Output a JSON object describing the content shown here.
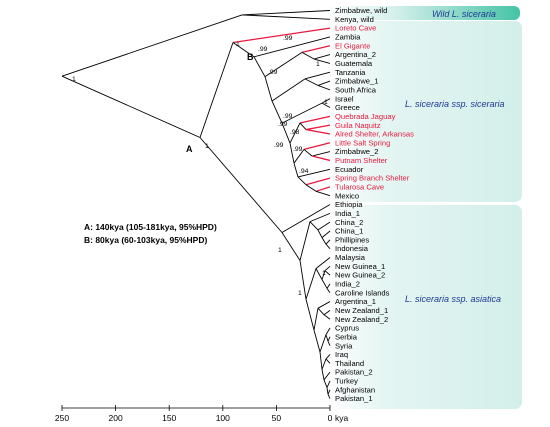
{
  "tree": {
    "leaves": [
      {
        "name": "Zimbabwe, wild",
        "highlight": false
      },
      {
        "name": "Kenya, wild",
        "highlight": false
      },
      {
        "name": "Loreto Cave",
        "highlight": true
      },
      {
        "name": "Zambia",
        "highlight": false
      },
      {
        "name": "El Gigante",
        "highlight": true
      },
      {
        "name": "Argentina_2",
        "highlight": false
      },
      {
        "name": "Guatemala",
        "highlight": false
      },
      {
        "name": "Tanzania",
        "highlight": false
      },
      {
        "name": "Zimbabwe_1",
        "highlight": false
      },
      {
        "name": "South Africa",
        "highlight": false
      },
      {
        "name": "Israel",
        "highlight": false
      },
      {
        "name": "Greece",
        "highlight": false
      },
      {
        "name": "Quebrada Jaguay",
        "highlight": true
      },
      {
        "name": "Guila Naquitz",
        "highlight": true
      },
      {
        "name": "Alred Shelter, Arkansas",
        "highlight": true
      },
      {
        "name": "Little Salt Spring",
        "highlight": true
      },
      {
        "name": "Zimbabwe_2",
        "highlight": false
      },
      {
        "name": "Putnam Shelter",
        "highlight": true
      },
      {
        "name": "Ecuador",
        "highlight": false
      },
      {
        "name": "Spring Branch Shelter",
        "highlight": true
      },
      {
        "name": "Tularosa Cave",
        "highlight": true
      },
      {
        "name": "Mexico",
        "highlight": false
      },
      {
        "name": "Ethiopia",
        "highlight": false
      },
      {
        "name": "India_1",
        "highlight": false
      },
      {
        "name": "China_2",
        "highlight": false
      },
      {
        "name": "China_1",
        "highlight": false
      },
      {
        "name": "Phillipines",
        "highlight": false
      },
      {
        "name": "Indonesia",
        "highlight": false
      },
      {
        "name": "Malaysia",
        "highlight": false
      },
      {
        "name": "New Guinea_1",
        "highlight": false
      },
      {
        "name": "New Guinea_2",
        "highlight": false
      },
      {
        "name": "India_2",
        "highlight": false
      },
      {
        "name": "Caroline Islands",
        "highlight": false
      },
      {
        "name": "Argentina_1",
        "highlight": false
      },
      {
        "name": "New Zealand_1",
        "highlight": false
      },
      {
        "name": "New Zealand_2",
        "highlight": false
      },
      {
        "name": "Cyprus",
        "highlight": false
      },
      {
        "name": "Serbia",
        "highlight": false
      },
      {
        "name": "Syria",
        "highlight": false
      },
      {
        "name": "Iraq",
        "highlight": false
      },
      {
        "name": "Thailand",
        "highlight": false
      },
      {
        "name": "Pakistan_2",
        "highlight": false
      },
      {
        "name": "Turkey",
        "highlight": false
      },
      {
        "name": "Afghanistan",
        "highlight": false
      },
      {
        "name": "Pakistan_1",
        "highlight": false
      }
    ],
    "support": [
      {
        "value": "1",
        "node": "root"
      },
      {
        "value": "1",
        "node": "A"
      },
      {
        "value": "1",
        "node": "B-parent"
      },
      {
        "value": ".99",
        "node": "B"
      },
      {
        "value": ".99",
        "node": "B-inner"
      },
      {
        "value": ".99",
        "node": "Argentina-clade"
      },
      {
        "value": "1",
        "node": "Guatemala-clade"
      },
      {
        "value": ".99",
        "node": "Israel-clade"
      },
      {
        "value": "1",
        "node": "Greece-clade"
      },
      {
        "value": ".99",
        "node": "Quebrada-clade"
      },
      {
        "value": ".98",
        "node": "Guila-clade"
      },
      {
        "value": ".99",
        "node": "Little-Salt-clade"
      },
      {
        "value": ".99",
        "node": "Zimbabwe2-clade"
      },
      {
        "value": ".94",
        "node": "Ecuador-clade"
      },
      {
        "value": "1",
        "node": "asiatica"
      },
      {
        "value": "1",
        "node": "NewGuinea-clade"
      },
      {
        "value": "1",
        "node": "Caroline-clade"
      }
    ],
    "node_labels": {
      "A": "A",
      "B": "B"
    }
  },
  "groups": {
    "wild": "Wild L. siceraria",
    "siceraria": "L. siceraria ssp. siceraria",
    "asiatica": "L. siceraria ssp. asiatica"
  },
  "colors": {
    "wild_band": "#45c3a6",
    "clade_panel": "#d6f0ec",
    "archaeological": "#e8193f",
    "group_label": "#1f3a93",
    "branch": "#000000"
  },
  "legend": {
    "line_a": "A: 140kya (105-181kya, 95%HPD)",
    "line_b": "B: 80kya (60-103kya, 95%HPD)"
  },
  "axis": {
    "ticks": [
      "250",
      "200",
      "150",
      "100",
      "50",
      "0"
    ],
    "unit": "kya"
  }
}
